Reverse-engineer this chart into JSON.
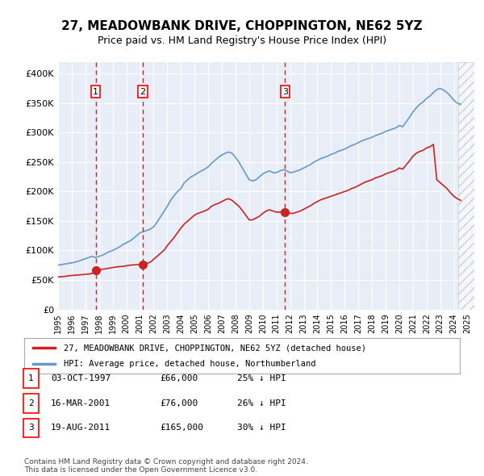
{
  "title": "27, MEADOWBANK DRIVE, CHOPPINGTON, NE62 5YZ",
  "subtitle": "Price paid vs. HM Land Registry's House Price Index (HPI)",
  "background_color": "#ffffff",
  "plot_bg_color": "#e8eef8",
  "ylabel_color": "#000000",
  "sale_dates": [
    1997.75,
    2001.21,
    2011.63
  ],
  "sale_prices": [
    66000,
    76000,
    165000
  ],
  "sale_labels": [
    "1",
    "2",
    "3"
  ],
  "legend_house": "27, MEADOWBANK DRIVE, CHOPPINGTON, NE62 5YZ (detached house)",
  "legend_hpi": "HPI: Average price, detached house, Northumberland",
  "table_rows": [
    [
      "1",
      "03-OCT-1997",
      "£66,000",
      "25% ↓ HPI"
    ],
    [
      "2",
      "16-MAR-2001",
      "£76,000",
      "26% ↓ HPI"
    ],
    [
      "3",
      "19-AUG-2011",
      "£165,000",
      "30% ↓ HPI"
    ]
  ],
  "footnote1": "Contains HM Land Registry data © Crown copyright and database right 2024.",
  "footnote2": "This data is licensed under the Open Government Licence v3.0.",
  "ylim": [
    0,
    420000
  ],
  "yticks": [
    0,
    50000,
    100000,
    150000,
    200000,
    250000,
    300000,
    350000,
    400000
  ],
  "ytick_labels": [
    "£0",
    "£50K",
    "£100K",
    "£150K",
    "£200K",
    "£250K",
    "£300K",
    "£350K",
    "£400K"
  ],
  "hpi_color": "#6699cc",
  "house_color": "#cc2222",
  "sale_marker_color": "#cc2222",
  "vline_color": "#cc2222",
  "hpi_data_x": [
    1995,
    1995.25,
    1995.5,
    1995.75,
    1996,
    1996.25,
    1996.5,
    1996.75,
    1997,
    1997.25,
    1997.5,
    1997.75,
    1998,
    1998.25,
    1998.5,
    1998.75,
    1999,
    1999.25,
    1999.5,
    1999.75,
    2000,
    2000.25,
    2000.5,
    2000.75,
    2001,
    2001.25,
    2001.5,
    2001.75,
    2002,
    2002.25,
    2002.5,
    2002.75,
    2003,
    2003.25,
    2003.5,
    2003.75,
    2004,
    2004.25,
    2004.5,
    2004.75,
    2005,
    2005.25,
    2005.5,
    2005.75,
    2006,
    2006.25,
    2006.5,
    2006.75,
    2007,
    2007.25,
    2007.5,
    2007.75,
    2008,
    2008.25,
    2008.5,
    2008.75,
    2009,
    2009.25,
    2009.5,
    2009.75,
    2010,
    2010.25,
    2010.5,
    2010.75,
    2011,
    2011.25,
    2011.5,
    2011.75,
    2012,
    2012.25,
    2012.5,
    2012.75,
    2013,
    2013.25,
    2013.5,
    2013.75,
    2014,
    2014.25,
    2014.5,
    2014.75,
    2015,
    2015.25,
    2015.5,
    2015.75,
    2016,
    2016.25,
    2016.5,
    2016.75,
    2017,
    2017.25,
    2017.5,
    2017.75,
    2018,
    2018.25,
    2018.5,
    2018.75,
    2019,
    2019.25,
    2019.5,
    2019.75,
    2020,
    2020.25,
    2020.5,
    2020.75,
    2021,
    2021.25,
    2021.5,
    2021.75,
    2022,
    2022.25,
    2022.5,
    2022.75,
    2023,
    2023.25,
    2023.5,
    2023.75,
    2024,
    2024.25,
    2024.5
  ],
  "hpi_data_y": [
    75000,
    76000,
    77000,
    78000,
    79000,
    80000,
    82000,
    84000,
    86000,
    88000,
    90000,
    88000,
    90000,
    92000,
    95000,
    98000,
    100000,
    103000,
    106000,
    110000,
    113000,
    116000,
    120000,
    125000,
    130000,
    132000,
    134000,
    136000,
    140000,
    148000,
    157000,
    166000,
    175000,
    185000,
    193000,
    200000,
    205000,
    215000,
    220000,
    225000,
    228000,
    232000,
    235000,
    238000,
    242000,
    248000,
    253000,
    258000,
    262000,
    265000,
    267000,
    265000,
    258000,
    250000,
    240000,
    230000,
    220000,
    218000,
    220000,
    225000,
    230000,
    233000,
    235000,
    232000,
    232000,
    235000,
    237000,
    235000,
    232000,
    233000,
    235000,
    237000,
    240000,
    243000,
    246000,
    250000,
    253000,
    256000,
    258000,
    260000,
    263000,
    265000,
    268000,
    270000,
    272000,
    275000,
    278000,
    280000,
    283000,
    286000,
    288000,
    290000,
    292000,
    295000,
    297000,
    299000,
    302000,
    304000,
    306000,
    308000,
    312000,
    310000,
    318000,
    326000,
    335000,
    342000,
    348000,
    352000,
    358000,
    362000,
    368000,
    373000,
    375000,
    372000,
    368000,
    362000,
    355000,
    350000,
    348000
  ],
  "house_data_x": [
    1995,
    1995.25,
    1995.5,
    1995.75,
    1996,
    1996.25,
    1996.5,
    1996.75,
    1997,
    1997.25,
    1997.5,
    1997.75,
    1998,
    1998.25,
    1998.5,
    1998.75,
    1999,
    1999.25,
    1999.5,
    1999.75,
    2000,
    2000.25,
    2000.5,
    2000.75,
    2001,
    2001.25,
    2001.5,
    2001.75,
    2002,
    2002.25,
    2002.5,
    2002.75,
    2003,
    2003.25,
    2003.5,
    2003.75,
    2004,
    2004.25,
    2004.5,
    2004.75,
    2005,
    2005.25,
    2005.5,
    2005.75,
    2006,
    2006.25,
    2006.5,
    2006.75,
    2007,
    2007.25,
    2007.5,
    2007.75,
    2008,
    2008.25,
    2008.5,
    2008.75,
    2009,
    2009.25,
    2009.5,
    2009.75,
    2010,
    2010.25,
    2010.5,
    2010.75,
    2011,
    2011.25,
    2011.5,
    2011.75,
    2012,
    2012.25,
    2012.5,
    2012.75,
    2013,
    2013.25,
    2013.5,
    2013.75,
    2014,
    2014.25,
    2014.5,
    2014.75,
    2015,
    2015.25,
    2015.5,
    2015.75,
    2016,
    2016.25,
    2016.5,
    2016.75,
    2017,
    2017.25,
    2017.5,
    2017.75,
    2018,
    2018.25,
    2018.5,
    2018.75,
    2019,
    2019.25,
    2019.5,
    2019.75,
    2020,
    2020.25,
    2020.5,
    2020.75,
    2021,
    2021.25,
    2021.5,
    2021.75,
    2022,
    2022.25,
    2022.5,
    2022.75,
    2023,
    2023.25,
    2023.5,
    2023.75,
    2024,
    2024.25,
    2024.5
  ],
  "house_data_y": [
    55000,
    55500,
    56000,
    57000,
    57500,
    58000,
    58500,
    59000,
    59500,
    60000,
    61000,
    66000,
    67000,
    68000,
    69000,
    70000,
    71000,
    72000,
    72500,
    73000,
    74000,
    75000,
    75500,
    76000,
    76000,
    77000,
    78000,
    80000,
    85000,
    90000,
    95000,
    100000,
    108000,
    115000,
    122000,
    130000,
    138000,
    145000,
    150000,
    155000,
    160000,
    163000,
    165000,
    167000,
    170000,
    175000,
    178000,
    180000,
    183000,
    186000,
    188000,
    185000,
    180000,
    175000,
    168000,
    160000,
    152000,
    152000,
    155000,
    158000,
    163000,
    167000,
    169000,
    167000,
    165000,
    165000,
    167000,
    165000,
    163000,
    163000,
    165000,
    167000,
    170000,
    173000,
    176000,
    180000,
    183000,
    186000,
    188000,
    190000,
    192000,
    194000,
    196000,
    198000,
    200000,
    202000,
    205000,
    207000,
    210000,
    213000,
    216000,
    218000,
    220000,
    223000,
    225000,
    227000,
    230000,
    232000,
    234000,
    236000,
    240000,
    238000,
    245000,
    252000,
    260000,
    265000,
    268000,
    270000,
    274000,
    276000,
    280000,
    220000,
    215000,
    210000,
    205000,
    198000,
    192000,
    188000,
    185000
  ],
  "xlim": [
    1995,
    2025.5
  ],
  "xticks": [
    1995,
    1996,
    1997,
    1998,
    1999,
    2000,
    2001,
    2002,
    2003,
    2004,
    2005,
    2006,
    2007,
    2008,
    2009,
    2010,
    2011,
    2012,
    2013,
    2014,
    2015,
    2016,
    2017,
    2018,
    2019,
    2020,
    2021,
    2022,
    2023,
    2024,
    2025
  ],
  "hatch_region_start": 2024.33,
  "hatch_region_end": 2025.5
}
